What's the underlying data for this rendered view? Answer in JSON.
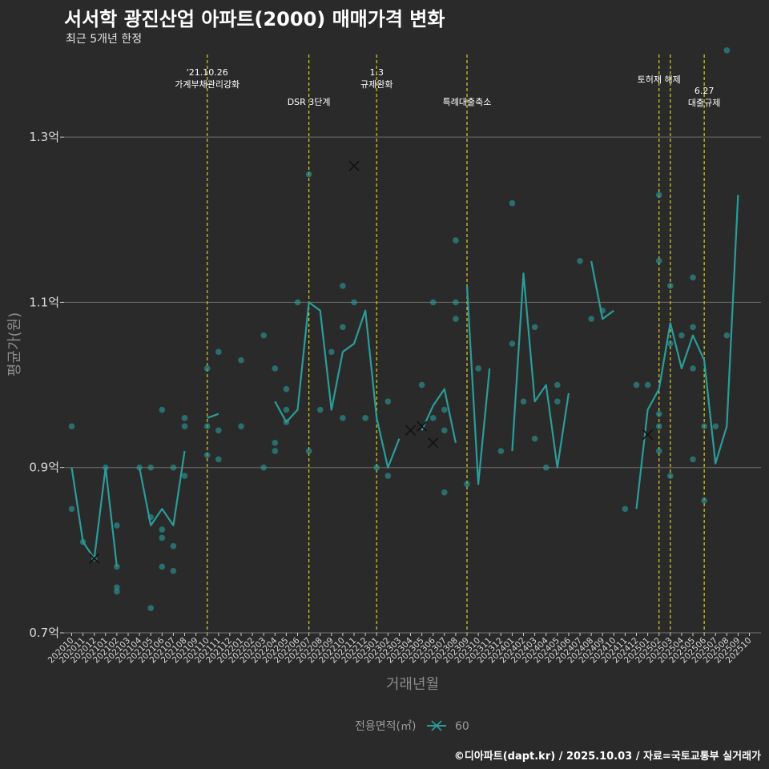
{
  "header": {
    "title": "서서학 광진산업 아파트(2000) 매매가격 변화",
    "subtitle": "최근 5개년 한정"
  },
  "caption": "©디아파트(dapt.kr) / 2025.10.03 / 자료=국토교통부 실거래가",
  "colors": {
    "background": "#2b2a2b",
    "series": "#2a9d99",
    "vline": "#d9d21a",
    "grid": "#6e6e6e"
  },
  "chart_data": {
    "type": "line",
    "title": "서서학 광진산업 아파트(2000) 매매가격 변화",
    "xlabel": "거래년월",
    "ylabel": "평균가(원)",
    "ylim": [
      0.7,
      1.4
    ],
    "y_ticks": [
      {
        "value": 0.7,
        "label": "0.7억"
      },
      {
        "value": 0.9,
        "label": "0.9억"
      },
      {
        "value": 1.1,
        "label": "1.1억"
      },
      {
        "value": 1.3,
        "label": "1.3억"
      }
    ],
    "categories": [
      "202010",
      "202011",
      "202012",
      "202101",
      "202102",
      "202103",
      "202104",
      "202105",
      "202106",
      "202107",
      "202108",
      "202109",
      "202110",
      "202111",
      "202112",
      "202201",
      "202202",
      "202203",
      "202204",
      "202205",
      "202206",
      "202207",
      "202208",
      "202209",
      "202210",
      "202211",
      "202212",
      "202301",
      "202302",
      "202303",
      "202304",
      "202305",
      "202306",
      "202307",
      "202308",
      "202309",
      "202310",
      "202311",
      "202312",
      "202401",
      "202402",
      "202403",
      "202404",
      "202405",
      "202406",
      "202407",
      "202408",
      "202409",
      "202410",
      "202411",
      "202412",
      "202501",
      "202502",
      "202503",
      "202504",
      "202505",
      "202506",
      "202507",
      "202508",
      "202509",
      "202510"
    ],
    "legend": {
      "title": "전용면적(㎡)",
      "entries": [
        "60"
      ]
    },
    "series": [
      {
        "name": "60",
        "line_segments": [
          [
            [
              "202010",
              0.9
            ],
            [
              "202011",
              0.81
            ],
            [
              "202012",
              0.79
            ],
            [
              "202101",
              0.9
            ],
            [
              "202102",
              0.78
            ]
          ],
          [
            [
              "202104",
              0.9
            ],
            [
              "202105",
              0.83
            ],
            [
              "202106",
              0.85
            ],
            [
              "202107",
              0.83
            ],
            [
              "202108",
              0.92
            ]
          ],
          [
            [
              "202110",
              0.96
            ],
            [
              "202111",
              0.965
            ]
          ],
          [
            [
              "202204",
              0.98
            ],
            [
              "202205",
              0.955
            ],
            [
              "202206",
              0.97
            ],
            [
              "202207",
              1.1
            ],
            [
              "202208",
              1.09
            ],
            [
              "202209",
              0.97
            ],
            [
              "202210",
              1.04
            ],
            [
              "202211",
              1.05
            ],
            [
              "202212",
              1.09
            ],
            [
              "202301",
              0.96
            ],
            [
              "202302",
              0.9
            ],
            [
              "202303",
              0.935
            ]
          ],
          [
            [
              "202305",
              0.945
            ],
            [
              "202306",
              0.975
            ],
            [
              "202307",
              0.995
            ],
            [
              "202308",
              0.93
            ]
          ],
          [
            [
              "202309",
              1.12
            ],
            [
              "202310",
              0.88
            ],
            [
              "202311",
              1.02
            ]
          ],
          [
            [
              "202401",
              0.92
            ],
            [
              "202402",
              1.135
            ],
            [
              "202403",
              0.98
            ],
            [
              "202404",
              1.0
            ],
            [
              "202405",
              0.9
            ],
            [
              "202406",
              0.99
            ]
          ],
          [
            [
              "202408",
              1.15
            ],
            [
              "202409",
              1.08
            ],
            [
              "202410",
              1.09
            ]
          ],
          [
            [
              "202412",
              0.85
            ],
            [
              "202501",
              0.97
            ],
            [
              "202502",
              0.995
            ],
            [
              "202503",
              1.075
            ],
            [
              "202504",
              1.02
            ],
            [
              "202505",
              1.06
            ],
            [
              "202506",
              1.03
            ],
            [
              "202507",
              0.905
            ],
            [
              "202508",
              0.95
            ],
            [
              "202509",
              1.23
            ]
          ]
        ],
        "points": [
          [
            "202010",
            0.95
          ],
          [
            "202010",
            0.85
          ],
          [
            "202011",
            0.81
          ],
          [
            "202012",
            0.79
          ],
          [
            "202101",
            0.9
          ],
          [
            "202102",
            0.83
          ],
          [
            "202102",
            0.78
          ],
          [
            "202102",
            0.75
          ],
          [
            "202102",
            0.755
          ],
          [
            "202104",
            0.9
          ],
          [
            "202105",
            0.9
          ],
          [
            "202105",
            0.84
          ],
          [
            "202105",
            0.73
          ],
          [
            "202106",
            0.97
          ],
          [
            "202106",
            0.825
          ],
          [
            "202106",
            0.815
          ],
          [
            "202106",
            0.78
          ],
          [
            "202107",
            0.9
          ],
          [
            "202107",
            0.805
          ],
          [
            "202107",
            0.775
          ],
          [
            "202108",
            0.96
          ],
          [
            "202108",
            0.95
          ],
          [
            "202108",
            0.89
          ],
          [
            "202110",
            1.02
          ],
          [
            "202110",
            0.95
          ],
          [
            "202110",
            0.915
          ],
          [
            "202111",
            1.04
          ],
          [
            "202111",
            0.945
          ],
          [
            "202111",
            0.91
          ],
          [
            "202201",
            1.03
          ],
          [
            "202201",
            0.95
          ],
          [
            "202203",
            1.06
          ],
          [
            "202203",
            0.9
          ],
          [
            "202204",
            1.02
          ],
          [
            "202204",
            0.93
          ],
          [
            "202204",
            0.92
          ],
          [
            "202205",
            0.995
          ],
          [
            "202205",
            0.97
          ],
          [
            "202205",
            0.955
          ],
          [
            "202206",
            1.1
          ],
          [
            "202207",
            1.255
          ],
          [
            "202207",
            0.92
          ],
          [
            "202208",
            0.97
          ],
          [
            "202209",
            1.04
          ],
          [
            "202210",
            1.12
          ],
          [
            "202210",
            1.07
          ],
          [
            "202210",
            0.96
          ],
          [
            "202211",
            1.1
          ],
          [
            "202212",
            0.96
          ],
          [
            "202301",
            0.9
          ],
          [
            "202302",
            0.98
          ],
          [
            "202302",
            0.89
          ],
          [
            "202305",
            1.0
          ],
          [
            "202306",
            1.1
          ],
          [
            "202306",
            0.96
          ],
          [
            "202307",
            0.97
          ],
          [
            "202307",
            0.945
          ],
          [
            "202307",
            0.87
          ],
          [
            "202308",
            1.175
          ],
          [
            "202308",
            1.1
          ],
          [
            "202308",
            1.08
          ],
          [
            "202309",
            0.88
          ],
          [
            "202310",
            1.02
          ],
          [
            "202312",
            0.92
          ],
          [
            "202401",
            1.22
          ],
          [
            "202401",
            1.05
          ],
          [
            "202402",
            0.98
          ],
          [
            "202403",
            1.07
          ],
          [
            "202403",
            0.935
          ],
          [
            "202404",
            0.9
          ],
          [
            "202405",
            1.0
          ],
          [
            "202405",
            0.98
          ],
          [
            "202407",
            1.15
          ],
          [
            "202408",
            1.08
          ],
          [
            "202409",
            1.09
          ],
          [
            "202411",
            0.85
          ],
          [
            "202412",
            1.0
          ],
          [
            "202501",
            1.0
          ],
          [
            "202502",
            1.23
          ],
          [
            "202502",
            1.15
          ],
          [
            "202502",
            0.965
          ],
          [
            "202502",
            0.95
          ],
          [
            "202502",
            0.92
          ],
          [
            "202503",
            1.12
          ],
          [
            "202503",
            1.05
          ],
          [
            "202503",
            0.89
          ],
          [
            "202504",
            1.06
          ],
          [
            "202505",
            1.13
          ],
          [
            "202505",
            1.07
          ],
          [
            "202505",
            1.02
          ],
          [
            "202505",
            0.91
          ],
          [
            "202506",
            0.95
          ],
          [
            "202506",
            0.86
          ],
          [
            "202507",
            0.95
          ],
          [
            "202508",
            1.405
          ],
          [
            "202508",
            1.06
          ]
        ],
        "x_markers": [
          [
            "202012",
            0.79
          ],
          [
            "202211",
            1.265
          ],
          [
            "202304",
            0.945
          ],
          [
            "202305",
            0.95
          ],
          [
            "202306",
            0.93
          ],
          [
            "202501",
            0.94
          ]
        ]
      }
    ],
    "events": [
      {
        "month": "202110",
        "lines": [
          "'21.10.26",
          "가계부채관리강화"
        ],
        "level": 1
      },
      {
        "month": "202207",
        "lines": [
          "DSR 3단계"
        ],
        "level": 3
      },
      {
        "month": "202301",
        "lines": [
          "1.3",
          "규제완화"
        ],
        "level": 1
      },
      {
        "month": "202309",
        "lines": [
          "특례대출축소"
        ],
        "level": 3
      },
      {
        "month": "202502",
        "lines": [
          "토허제 해제"
        ],
        "level": 2
      },
      {
        "month": "202503",
        "lines": [],
        "level": 0
      },
      {
        "month": "202506",
        "lines": [
          "6.27",
          "대출규제"
        ],
        "level": 4
      }
    ]
  }
}
